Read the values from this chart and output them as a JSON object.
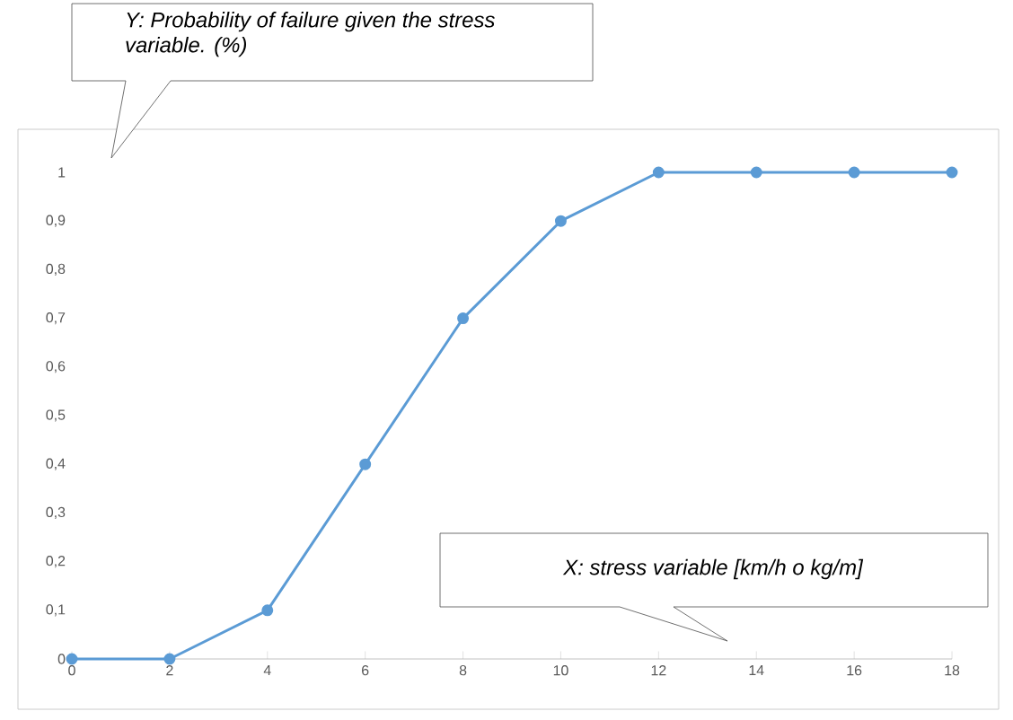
{
  "chart_data": {
    "type": "line",
    "annotations": [
      "Y: Probability of failure given the stress variable. (%)",
      "X: stress variable [km/h o kg/m]"
    ],
    "x": [
      0,
      2,
      4,
      6,
      8,
      10,
      12,
      14,
      16,
      18
    ],
    "values": [
      0,
      0,
      0.1,
      0.4,
      0.7,
      0.9,
      1,
      1,
      1,
      1
    ],
    "color": "#5b9bd5",
    "marker": "circle",
    "xlim": [
      0,
      18
    ],
    "xticks": [
      0,
      2,
      4,
      6,
      8,
      10,
      12,
      14,
      16,
      18
    ],
    "ylim": [
      0,
      1
    ],
    "yticks": [
      0,
      {
        "value": 0.1,
        "label": "0,1"
      },
      {
        "value": 0.2,
        "label": "0,2"
      },
      {
        "value": 0.3,
        "label": "0,3"
      },
      {
        "value": 0.4,
        "label": "0,4"
      },
      {
        "value": 0.5,
        "label": "0,5"
      },
      {
        "value": 0.6,
        "label": "0,6"
      },
      {
        "value": 0.7,
        "label": "0,7"
      },
      {
        "value": 0.8,
        "label": "0,8"
      },
      {
        "value": 0.9,
        "label": "0,9"
      },
      1
    ]
  }
}
